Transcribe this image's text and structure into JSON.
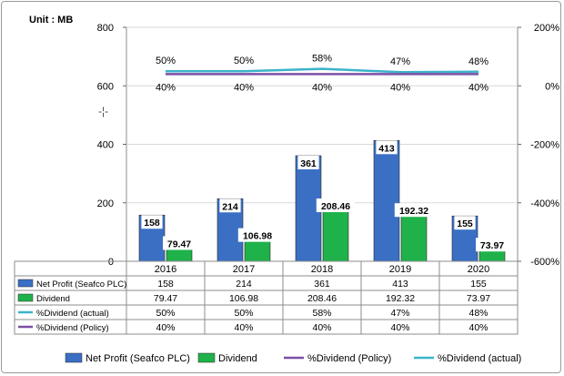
{
  "chart_data": {
    "type": "bar",
    "unit_label": "Unit : MB",
    "categories": [
      "2016",
      "2017",
      "2018",
      "2019",
      "2020"
    ],
    "ylim": [
      0,
      800
    ],
    "yticks": [
      "0",
      "200",
      "400",
      "600",
      "800"
    ],
    "y2lim": [
      -600,
      200
    ],
    "y2ticks": [
      "-600%",
      "-400%",
      "-200%",
      "0%",
      "200%"
    ],
    "series": [
      {
        "name": "Net Profit (Seafco PLC)",
        "kind": "bar",
        "axis": "left",
        "color": "#3a6fc4",
        "values": [
          158,
          214,
          361,
          413,
          155
        ],
        "labels": [
          "158",
          "214",
          "361",
          "413",
          "155"
        ],
        "table_values": [
          "158",
          "214",
          "361",
          "413",
          "155"
        ]
      },
      {
        "name": "Dividend",
        "kind": "bar",
        "axis": "left",
        "color": "#1fb24a",
        "values": [
          79.47,
          106.98,
          208.46,
          192.32,
          73.97
        ],
        "labels": [
          "79.47",
          "106.98",
          "208.46",
          "192.32",
          "73.97"
        ],
        "table_values": [
          "79.47",
          "106.98",
          "208.46",
          "192.32",
          "73.97"
        ]
      },
      {
        "name": "%Dividend (actual)",
        "kind": "line",
        "axis": "right",
        "color": "#3cb3c9",
        "values": [
          50,
          50,
          58,
          47,
          48
        ],
        "labels": [
          "50%",
          "50%",
          "58%",
          "47%",
          "48%"
        ],
        "table_values": [
          "50%",
          "50%",
          "58%",
          "47%",
          "48%"
        ]
      },
      {
        "name": "%Dividend (Policy)",
        "kind": "line",
        "axis": "right",
        "color": "#7c50a6",
        "values": [
          40,
          40,
          40,
          40,
          40
        ],
        "labels": [
          "40%",
          "40%",
          "40%",
          "40%",
          "40%"
        ],
        "table_values": [
          "40%",
          "40%",
          "40%",
          "40%",
          "40%"
        ]
      }
    ],
    "legend": {
      "placement": "bottom",
      "order": [
        "Net Profit (Seafco PLC)",
        "Dividend",
        "%Dividend (Policy)",
        "%Dividend (actual)"
      ]
    },
    "grid": true
  }
}
